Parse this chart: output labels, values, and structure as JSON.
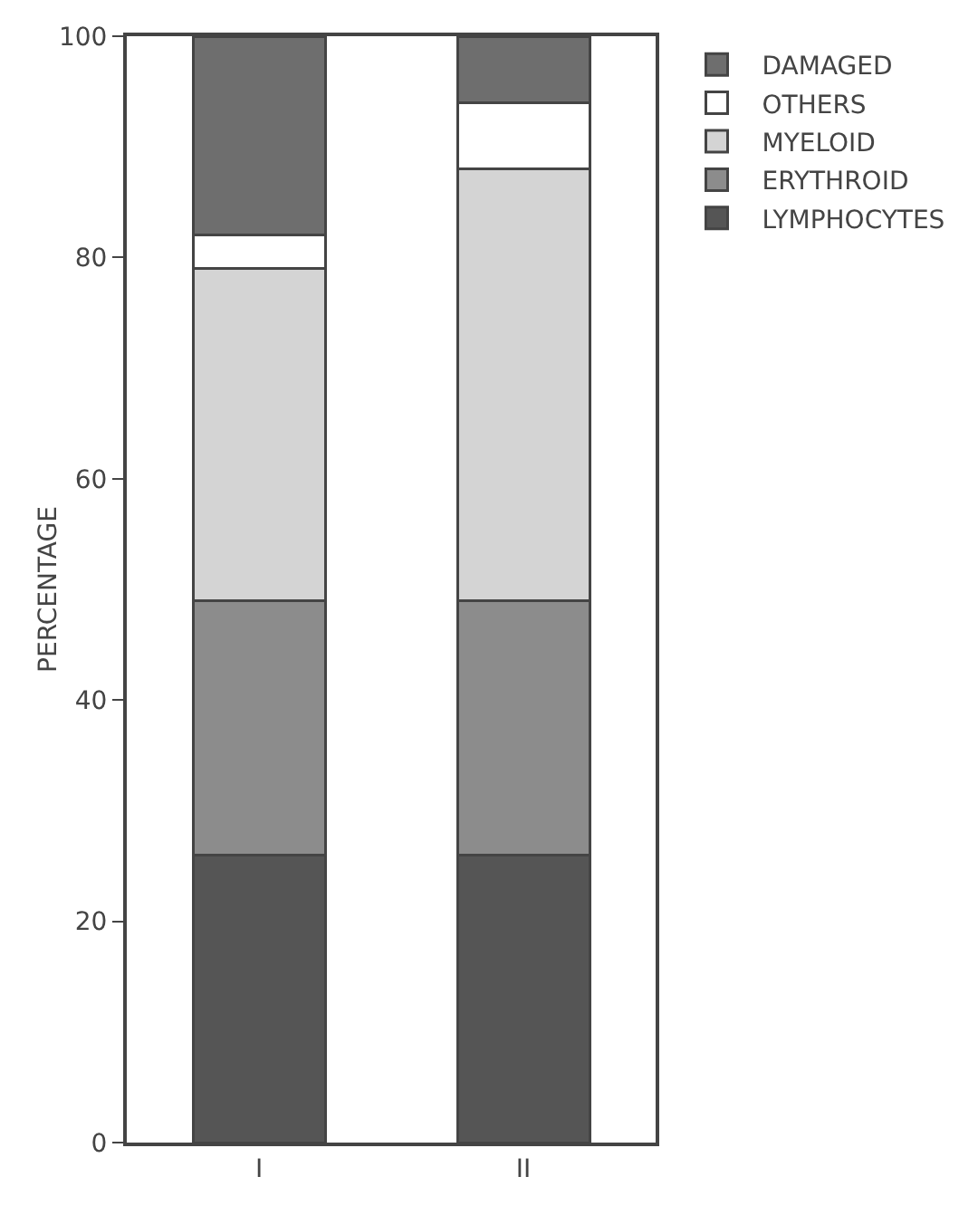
{
  "chart_data": {
    "type": "bar",
    "stacked": true,
    "ylabel": "PERCENTAGE",
    "categories": [
      "I",
      "II"
    ],
    "ylim": [
      0,
      100
    ],
    "yticks": [
      0,
      20,
      40,
      60,
      80,
      100
    ],
    "grid": false,
    "legend": "right",
    "series": [
      {
        "name": "LYMPHOCYTES",
        "color": "#555555",
        "values": [
          26,
          26
        ]
      },
      {
        "name": "ERYTHROID",
        "color": "#8c8c8c",
        "values": [
          23,
          23
        ]
      },
      {
        "name": "MYELOID",
        "color": "#d4d4d4",
        "values": [
          30,
          39
        ]
      },
      {
        "name": "OTHERS",
        "color": "#ffffff",
        "values": [
          3,
          6
        ]
      },
      {
        "name": "DAMAGED",
        "color": "#6e6e6e",
        "values": [
          18,
          6
        ]
      }
    ]
  }
}
